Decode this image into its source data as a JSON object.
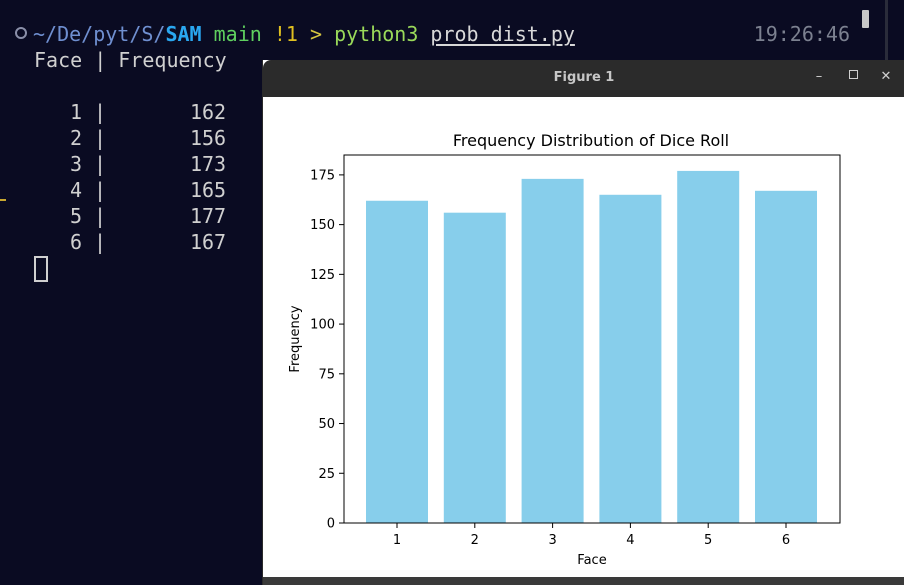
{
  "terminal": {
    "prompt": {
      "path_parts": [
        "~/De/pyt/S/",
        "SAM"
      ],
      "branch": "main",
      "git_status": "!1",
      "arrow": ">",
      "command": "python3",
      "argument": "prob_dist.py"
    },
    "time": "19:26:46",
    "output_header": "Face | Frequency",
    "rows": [
      {
        "face": "1",
        "freq": "162"
      },
      {
        "face": "2",
        "freq": "156"
      },
      {
        "face": "3",
        "freq": "173"
      },
      {
        "face": "4",
        "freq": "165"
      },
      {
        "face": "5",
        "freq": "177"
      },
      {
        "face": "6",
        "freq": "167"
      }
    ]
  },
  "figure_window": {
    "title": "Figure 1",
    "buttons": {
      "minimize": "–",
      "close": "✕"
    }
  },
  "chart_data": {
    "type": "bar",
    "title": "Frequency Distribution of Dice Roll",
    "xlabel": "Face",
    "ylabel": "Frequency",
    "categories": [
      "1",
      "2",
      "3",
      "4",
      "5",
      "6"
    ],
    "values": [
      162,
      156,
      173,
      165,
      177,
      167
    ],
    "ylim": [
      0,
      185
    ],
    "yticks": [
      0,
      25,
      50,
      75,
      100,
      125,
      150,
      175
    ],
    "bar_color": "#87ceeb",
    "grid": false
  }
}
